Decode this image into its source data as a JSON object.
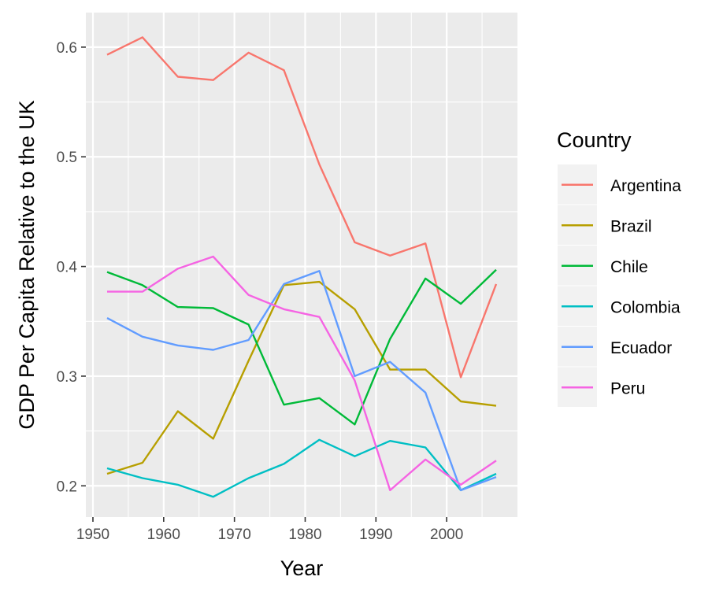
{
  "chart_data": {
    "type": "line",
    "xlabel": "Year",
    "ylabel": "GDP Per Capita Relative to the UK",
    "xlim": [
      1949,
      2010
    ],
    "ylim": [
      0.1715,
      0.6315
    ],
    "x_ticks": [
      1950,
      1960,
      1970,
      1980,
      1990,
      2000
    ],
    "x_tick_labels": [
      "1950",
      "1960",
      "1970",
      "1980",
      "1990",
      "2000"
    ],
    "y_ticks": [
      0.2,
      0.3,
      0.4,
      0.5,
      0.6
    ],
    "y_tick_labels": [
      "0.2",
      "0.3",
      "0.4",
      "0.5",
      "0.6"
    ],
    "grid": true,
    "legend": {
      "title": "Country",
      "placement": "right"
    },
    "x": [
      1952,
      1957,
      1962,
      1967,
      1972,
      1977,
      1982,
      1987,
      1992,
      1997,
      2002,
      2007
    ],
    "series": [
      {
        "name": "Argentina",
        "color": "#F8766D",
        "values": [
          0.593,
          0.609,
          0.573,
          0.57,
          0.595,
          0.579,
          0.493,
          0.422,
          0.41,
          0.421,
          0.299,
          0.384
        ]
      },
      {
        "name": "Brazil",
        "color": "#B79F00",
        "values": [
          0.211,
          0.221,
          0.268,
          0.243,
          0.314,
          0.383,
          0.386,
          0.361,
          0.306,
          0.306,
          0.277,
          0.273
        ]
      },
      {
        "name": "Chile",
        "color": "#00BA38",
        "values": [
          0.395,
          0.383,
          0.363,
          0.362,
          0.347,
          0.274,
          0.28,
          0.256,
          0.334,
          0.389,
          0.366,
          0.397
        ]
      },
      {
        "name": "Colombia",
        "color": "#00BFC4",
        "values": [
          0.216,
          0.207,
          0.201,
          0.19,
          0.207,
          0.22,
          0.242,
          0.227,
          0.241,
          0.235,
          0.196,
          0.211
        ]
      },
      {
        "name": "Ecuador",
        "color": "#619CFF",
        "values": [
          0.353,
          0.336,
          0.328,
          0.324,
          0.333,
          0.384,
          0.396,
          0.3,
          0.313,
          0.285,
          0.196,
          0.208
        ]
      },
      {
        "name": "Peru",
        "color": "#F564E3",
        "values": [
          0.377,
          0.377,
          0.398,
          0.409,
          0.374,
          0.361,
          0.354,
          0.296,
          0.196,
          0.224,
          0.201,
          0.223
        ]
      }
    ]
  }
}
